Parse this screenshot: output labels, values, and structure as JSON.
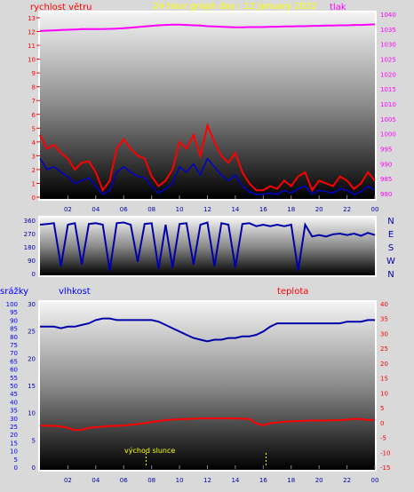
{
  "title": "24 hour graph day : 12 January 2022",
  "colors": {
    "wind": "#ff0000",
    "gust": "#0000cc",
    "pressure": "#ff00ff",
    "direction": "#0000aa",
    "humidity": "#0000aa",
    "temperature": "#ff0000",
    "sun": "#ffff00",
    "axis_left": "#0000ff",
    "axis_right_pressure": "#ff00ff",
    "axis_right_temp": "#ff0000",
    "title": "#ffff00",
    "background": "#d9d9d9"
  },
  "chart_data": [
    {
      "id": "wind-pressure",
      "type": "line",
      "left_label": "rychlost větru",
      "right_label": "tlak",
      "x_ticks": [
        "02",
        "04",
        "06",
        "08",
        "10",
        "12",
        "14",
        "16",
        "18",
        "20",
        "22",
        "00"
      ],
      "x": [
        0,
        0.5,
        1,
        1.5,
        2,
        2.5,
        3,
        3.5,
        4,
        4.5,
        5,
        5.5,
        6,
        6.5,
        7,
        7.5,
        8,
        8.5,
        9,
        9.5,
        10,
        10.5,
        11,
        11.5,
        12,
        12.5,
        13,
        13.5,
        14,
        14.5,
        15,
        15.5,
        16,
        16.5,
        17,
        17.5,
        18,
        18.5,
        19,
        19.5,
        20,
        20.5,
        21,
        21.5,
        22,
        22.5,
        23,
        23.5,
        24
      ],
      "y_left_ticks": [
        "0",
        "1",
        "2",
        "3",
        "4",
        "5",
        "6",
        "7",
        "8",
        "9",
        "10",
        "11",
        "12",
        "13"
      ],
      "y_left_range": [
        0,
        13
      ],
      "y_right_ticks": [
        "980",
        "985",
        "990",
        "995",
        "1000",
        "1005",
        "1010",
        "1015",
        "1020",
        "1025",
        "1030",
        "1035",
        "1040"
      ],
      "y_right_range": [
        980,
        1040
      ],
      "series": [
        {
          "key": "pressure",
          "axis": "right",
          "values": [
            1034.4,
            1034.5,
            1034.6,
            1034.7,
            1034.8,
            1034.9,
            1035.0,
            1035.0,
            1035.0,
            1035.0,
            1035.1,
            1035.2,
            1035.3,
            1035.5,
            1035.7,
            1035.9,
            1036.1,
            1036.3,
            1036.4,
            1036.5,
            1036.5,
            1036.4,
            1036.3,
            1036.2,
            1036.0,
            1035.9,
            1035.8,
            1035.7,
            1035.6,
            1035.6,
            1035.7,
            1035.7,
            1035.7,
            1035.8,
            1035.8,
            1035.9,
            1035.9,
            1036.0,
            1036.0,
            1036.1,
            1036.1,
            1036.2,
            1036.2,
            1036.3,
            1036.3,
            1036.4,
            1036.4,
            1036.5,
            1036.6
          ]
        },
        {
          "key": "wind",
          "axis": "left",
          "values": [
            4.5,
            3.5,
            3.8,
            3.2,
            2.8,
            2.0,
            2.5,
            2.6,
            1.8,
            0.5,
            1.2,
            3.5,
            4.2,
            3.5,
            3.0,
            2.8,
            1.5,
            0.8,
            1.2,
            2.0,
            4.0,
            3.5,
            4.5,
            3.0,
            5.2,
            4.0,
            3.0,
            2.5,
            3.2,
            1.8,
            1.0,
            0.5,
            0.5,
            0.8,
            0.6,
            1.2,
            0.8,
            1.5,
            1.8,
            0.5,
            1.2,
            1.0,
            0.8,
            1.5,
            1.2,
            0.6,
            1.0,
            1.8,
            1.2
          ]
        },
        {
          "key": "gust",
          "axis": "left",
          "values": [
            2.8,
            2.0,
            2.2,
            1.8,
            1.5,
            1.0,
            1.2,
            1.4,
            0.8,
            0.2,
            0.5,
            1.8,
            2.2,
            1.8,
            1.5,
            1.4,
            0.8,
            0.3,
            0.6,
            1.0,
            2.2,
            1.8,
            2.4,
            1.6,
            2.8,
            2.2,
            1.6,
            1.2,
            1.6,
            0.8,
            0.4,
            0.2,
            0.2,
            0.3,
            0.2,
            0.5,
            0.3,
            0.6,
            0.8,
            0.2,
            0.5,
            0.4,
            0.3,
            0.6,
            0.5,
            0.2,
            0.4,
            0.8,
            0.5
          ]
        }
      ]
    },
    {
      "id": "wind-direction",
      "type": "line",
      "x_ticks": [],
      "y_ticks": [
        "0",
        "90",
        "180",
        "270",
        "360"
      ],
      "y_range": [
        0,
        360
      ],
      "right_labels": [
        "N",
        "W",
        "S",
        "E",
        "N"
      ],
      "series": [
        {
          "key": "direction",
          "values": [
            330,
            335,
            340,
            50,
            330,
            340,
            60,
            335,
            340,
            330,
            20,
            340,
            345,
            330,
            80,
            335,
            340,
            30,
            330,
            40,
            335,
            340,
            60,
            330,
            345,
            50,
            340,
            330,
            40,
            335,
            340,
            320,
            330,
            320,
            330,
            320,
            330,
            20,
            330,
            250,
            260,
            250,
            265,
            270,
            260,
            270,
            255,
            275,
            260
          ]
        }
      ]
    },
    {
      "id": "humidity-temperature",
      "type": "line",
      "left_label": "srážky",
      "left_inner_label": "vlhkost",
      "right_label": "teplota",
      "annotation": "východ slunce",
      "x_ticks": [
        "02",
        "04",
        "06",
        "08",
        "10",
        "12",
        "14",
        "16",
        "18",
        "20",
        "22",
        "00"
      ],
      "y_left_ticks": [
        "0",
        "5",
        "10",
        "15",
        "20",
        "25",
        "30",
        "35",
        "40",
        "45",
        "50",
        "55",
        "60",
        "65",
        "70",
        "75",
        "80",
        "85",
        "90",
        "95",
        "100"
      ],
      "y_left_range": [
        0,
        100
      ],
      "y_inner_ticks": [
        "0",
        "5",
        "10",
        "15",
        "20",
        "25",
        "30"
      ],
      "y_inner_range": [
        0,
        30
      ],
      "y_right_ticks": [
        "-15",
        "-10",
        "-5",
        "0",
        "5",
        "10",
        "15",
        "20",
        "25",
        "30",
        "35",
        "40"
      ],
      "y_right_range": [
        -15,
        40
      ],
      "sun_markers_hours": [
        7.6,
        16.2
      ],
      "series": [
        {
          "key": "humidity",
          "axis": "left",
          "values": [
            86,
            86,
            86,
            85,
            86,
            86,
            87,
            88,
            90,
            91,
            91,
            90,
            90,
            90,
            90,
            90,
            90,
            89,
            87,
            85,
            83,
            81,
            79,
            78,
            77,
            78,
            78,
            79,
            79,
            80,
            80,
            81,
            83,
            86,
            88,
            88,
            88,
            88,
            88,
            88,
            88,
            88,
            88,
            88,
            89,
            89,
            89,
            90,
            90
          ]
        },
        {
          "key": "temperature",
          "axis": "right",
          "values": [
            -1.0,
            -1.1,
            -1.1,
            -1.3,
            -1.8,
            -2.6,
            -2.4,
            -1.8,
            -1.6,
            -1.3,
            -1.2,
            -1.1,
            -1.0,
            -0.7,
            -0.5,
            -0.2,
            0.2,
            0.5,
            0.8,
            1.0,
            1.1,
            1.2,
            1.3,
            1.4,
            1.4,
            1.4,
            1.4,
            1.4,
            1.4,
            1.3,
            1.2,
            -0.3,
            -0.9,
            -0.2,
            0.0,
            0.3,
            0.4,
            0.5,
            0.6,
            0.7,
            0.7,
            0.7,
            0.8,
            0.8,
            1.0,
            1.2,
            1.2,
            0.8,
            1.0
          ]
        }
      ]
    }
  ]
}
